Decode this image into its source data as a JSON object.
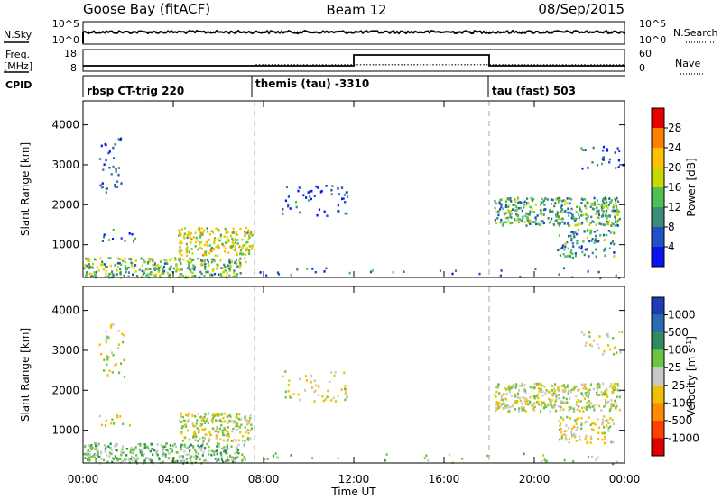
{
  "header": {
    "station": "Goose Bay (fitACF)",
    "beam": "Beam 12",
    "date": "08/Sep/2015"
  },
  "noise_panel": {
    "left_label": "N.Sky",
    "right_label": "N.Search",
    "left_ticks": [
      "10^5",
      "10^0"
    ],
    "right_ticks": [
      "10^5",
      "10^0"
    ]
  },
  "freq_panel": {
    "left_label_line1": "Freq.",
    "left_label_line2": "[MHz]",
    "right_label": "Nave",
    "left_ticks": [
      "18",
      "8"
    ],
    "right_ticks": [
      "60",
      "0"
    ]
  },
  "cpid_panel": {
    "label": "CPID",
    "segments": [
      {
        "start_hour": 0.0,
        "name": "rbsp CT-trig 220"
      },
      {
        "start_hour": 7.6,
        "name": "themis (tau) -3310"
      },
      {
        "start_hour": 18.0,
        "name": "tau (fast) 503"
      }
    ]
  },
  "power_colorbar": {
    "label": "Power [dB]",
    "ticks": [
      "28",
      "24",
      "20",
      "16",
      "12",
      "8",
      "4"
    ],
    "colors": [
      "#0a14f0",
      "#2050c8",
      "#3c8c78",
      "#50c050",
      "#c8d800",
      "#ffc000",
      "#ff8000",
      "#e80000"
    ]
  },
  "velocity_colorbar": {
    "label": "Velocity [m s",
    "label_sup": "-1",
    "label_close": "]",
    "ticks": [
      "1000",
      "500",
      "100",
      "25",
      "-25",
      "-100",
      "-500",
      "-1000"
    ],
    "colors": [
      "#1e3cb4",
      "#2a6ab0",
      "#2f8a60",
      "#6cc440",
      "#c8c8c8",
      "#f0c000",
      "#ff8c00",
      "#ff4000",
      "#e00000"
    ]
  },
  "chart_data": {
    "type": "heatmap",
    "title": "Goose Bay (fitACF)  Beam 12  08/Sep/2015",
    "xlabel": "Time UT",
    "ylabel": "Slant Range [km]",
    "x_tick_labels": [
      "00:00",
      "04:00",
      "08:00",
      "12:00",
      "16:00",
      "20:00",
      "00:00"
    ],
    "x_range_hours": [
      0,
      24
    ],
    "y_ticks": [
      1000,
      2000,
      3000,
      4000
    ],
    "y_range_km": [
      180,
      4600
    ],
    "panels": [
      "Power",
      "Velocity"
    ],
    "mode_change_hours": [
      7.6,
      18.0
    ],
    "noise_search_level_log": 1.6,
    "noise_sky_level_log": 1.2,
    "frequency_mhz": [
      {
        "from": 0.0,
        "to": 7.6,
        "value": 10.5
      },
      {
        "from": 7.6,
        "to": 24.0,
        "value": 11.0
      }
    ],
    "nave": [
      {
        "from": 0.0,
        "to": 7.6,
        "value": 15
      },
      {
        "from": 7.6,
        "to": 12.0,
        "value": 15
      },
      {
        "from": 12.0,
        "to": 18.0,
        "value": 45
      },
      {
        "from": 18.0,
        "to": 24.0,
        "value": 15
      }
    ],
    "scatter_regions": [
      {
        "t0": 0.0,
        "t1": 7.2,
        "r0": 200,
        "r1": 700,
        "power": 14,
        "velocity": 60,
        "density": "high"
      },
      {
        "t0": 4.2,
        "t1": 7.5,
        "r0": 750,
        "r1": 1450,
        "power": 18,
        "velocity": 10,
        "density": "high"
      },
      {
        "t0": 0.5,
        "t1": 2.3,
        "r0": 1100,
        "r1": 1400,
        "power": 8,
        "velocity": 5,
        "density": "low"
      },
      {
        "t0": 0.7,
        "t1": 1.8,
        "r0": 2300,
        "r1": 3700,
        "power": 6,
        "velocity": 0,
        "density": "low"
      },
      {
        "t0": 8.8,
        "t1": 11.7,
        "r0": 1750,
        "r1": 2500,
        "power": 6,
        "velocity": -5,
        "density": "low"
      },
      {
        "t0": 18.2,
        "t1": 23.8,
        "r0": 1500,
        "r1": 2200,
        "power": 12,
        "velocity": 5,
        "density": "high"
      },
      {
        "t0": 21.0,
        "t1": 23.5,
        "r0": 700,
        "r1": 1400,
        "power": 10,
        "velocity": -10,
        "density": "medium"
      },
      {
        "t0": 22.0,
        "t1": 23.9,
        "r0": 2900,
        "r1": 3500,
        "power": 6,
        "velocity": 0,
        "density": "low"
      },
      {
        "t0": 7.6,
        "t1": 24.0,
        "r0": 180,
        "r1": 450,
        "power": 8,
        "velocity": 40,
        "density": "sparse"
      }
    ]
  }
}
